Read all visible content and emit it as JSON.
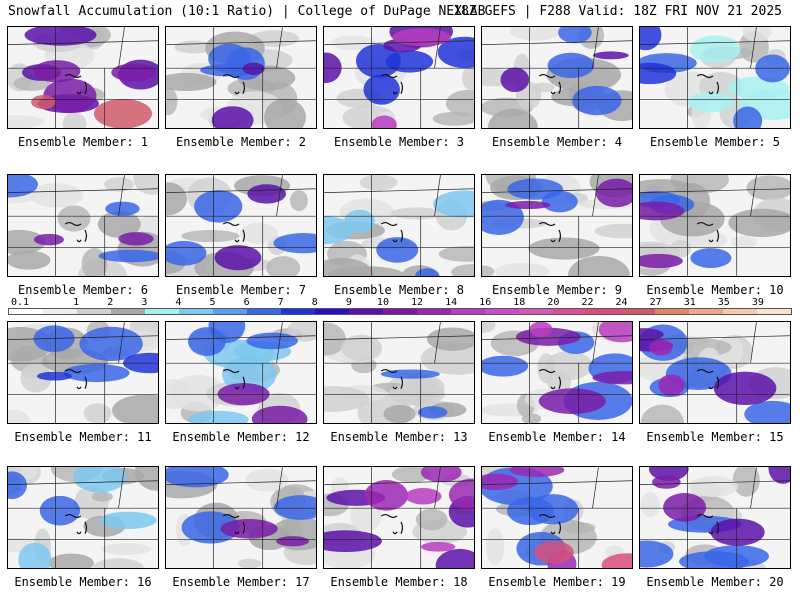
{
  "header": {
    "title": "Snowfall Accumulation (10:1 Ratio) | College of DuPage NEXLAB",
    "run_info": "18Z GEFS | F288 Valid: 18Z FRI NOV 21 2025"
  },
  "colorbar": {
    "labels": [
      "0.1",
      "1",
      "2",
      "3",
      "4",
      "5",
      "6",
      "7",
      "8",
      "9",
      "10",
      "12",
      "14",
      "16",
      "18",
      "20",
      "22",
      "24",
      "27",
      "31",
      "35",
      "39"
    ],
    "colors": [
      "#ffffff",
      "#eeeeee",
      "#d0d0d0",
      "#a8a8a8",
      "#a8f0f0",
      "#7ec8f0",
      "#5d9cf0",
      "#3a66e8",
      "#1f34d8",
      "#2a10b8",
      "#5a12a8",
      "#7a1ca8",
      "#9a28b4",
      "#b83cc0",
      "#c94cc8",
      "#d55ab8",
      "#d8509a",
      "#d6507c",
      "#d05a6a",
      "#e0866a",
      "#eda88a",
      "#f6c8ac",
      "#fbe3cf"
    ]
  },
  "panels": [
    {
      "label": "Ensemble Member: 1",
      "colors": [
        "#5a12a8",
        "#7a1ca8",
        "#d05a6a"
      ]
    },
    {
      "label": "Ensemble Member: 2",
      "colors": [
        "#a8a8a8",
        "#3a66e8",
        "#5a12a8"
      ]
    },
    {
      "label": "Ensemble Member: 3",
      "colors": [
        "#1f34d8",
        "#5a12a8",
        "#b83cc0"
      ]
    },
    {
      "label": "Ensemble Member: 4",
      "colors": [
        "#a8a8a8",
        "#3a66e8",
        "#5a12a8"
      ]
    },
    {
      "label": "Ensemble Member: 5",
      "colors": [
        "#a8f0f0",
        "#3a66e8",
        "#1f34d8"
      ]
    },
    {
      "label": "Ensemble Member: 6",
      "colors": [
        "#a8a8a8",
        "#3a66e8",
        "#7a1ca8"
      ]
    },
    {
      "label": "Ensemble Member: 7",
      "colors": [
        "#a8a8a8",
        "#3a66e8",
        "#5a12a8"
      ]
    },
    {
      "label": "Ensemble Member: 8",
      "colors": [
        "#a8a8a8",
        "#7ec8f0",
        "#3a66e8"
      ]
    },
    {
      "label": "Ensemble Member: 9",
      "colors": [
        "#a8a8a8",
        "#3a66e8",
        "#7a1ca8"
      ]
    },
    {
      "label": "Ensemble Member: 10",
      "colors": [
        "#a8a8a8",
        "#3a66e8",
        "#7a1ca8"
      ]
    },
    {
      "label": "Ensemble Member: 11",
      "colors": [
        "#a8a8a8",
        "#3a66e8",
        "#1f34d8"
      ]
    },
    {
      "label": "Ensemble Member: 12",
      "colors": [
        "#7ec8f0",
        "#3a66e8",
        "#7a1ca8"
      ]
    },
    {
      "label": "Ensemble Member: 13",
      "colors": [
        "#d0d0d0",
        "#a8a8a8",
        "#3a66e8"
      ]
    },
    {
      "label": "Ensemble Member: 14",
      "colors": [
        "#3a66e8",
        "#7a1ca8",
        "#b83cc0"
      ]
    },
    {
      "label": "Ensemble Member: 15",
      "colors": [
        "#3a66e8",
        "#5a12a8",
        "#9a28b4"
      ]
    },
    {
      "label": "Ensemble Member: 16",
      "colors": [
        "#a8a8a8",
        "#7ec8f0",
        "#3a66e8"
      ]
    },
    {
      "label": "Ensemble Member: 17",
      "colors": [
        "#a8a8a8",
        "#3a66e8",
        "#7a1ca8"
      ]
    },
    {
      "label": "Ensemble Member: 18",
      "colors": [
        "#5a12a8",
        "#9a28b4",
        "#b83cc0"
      ]
    },
    {
      "label": "Ensemble Member: 19",
      "colors": [
        "#3a66e8",
        "#9a28b4",
        "#d6507c"
      ]
    },
    {
      "label": "Ensemble Member: 20",
      "colors": [
        "#3a66e8",
        "#5a12a8",
        "#7a1ca8"
      ]
    }
  ]
}
